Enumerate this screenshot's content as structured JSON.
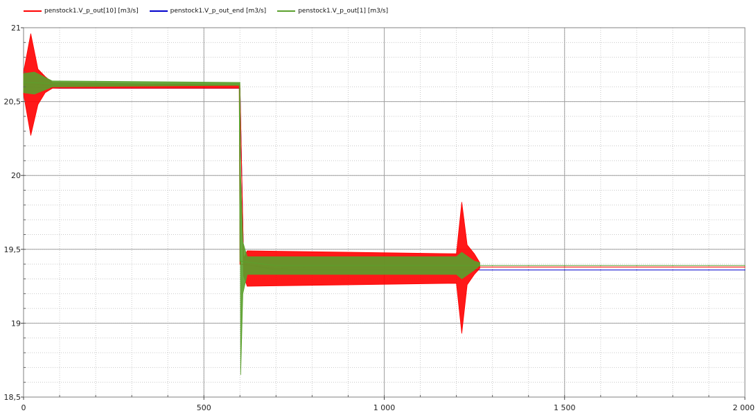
{
  "chart_data": {
    "type": "line",
    "title": "",
    "xlabel": "",
    "ylabel": "",
    "xlim": [
      0,
      2000
    ],
    "ylim": [
      18.5,
      21
    ],
    "grid": true,
    "legend_position": "top-left",
    "x_ticks": [
      {
        "value": 0,
        "label": "0"
      },
      {
        "value": 500,
        "label": "500"
      },
      {
        "value": 1000,
        "label": "1 000"
      },
      {
        "value": 1500,
        "label": "1 500"
      },
      {
        "value": 2000,
        "label": "2 000"
      }
    ],
    "y_ticks": [
      {
        "value": 18.5,
        "label": "18,5"
      },
      {
        "value": 19,
        "label": "19"
      },
      {
        "value": 19.5,
        "label": "19,5"
      },
      {
        "value": 20,
        "label": "20"
      },
      {
        "value": 20.5,
        "label": "20,5"
      },
      {
        "value": 21,
        "label": "21"
      }
    ],
    "series": [
      {
        "name": "penstock1.V_p_out[10] [m3/s]",
        "color": "#ff0000",
        "band": [
          {
            "x": 0,
            "lo": 20.55,
            "hi": 20.7
          },
          {
            "x": 20,
            "lo": 20.27,
            "hi": 20.96
          },
          {
            "x": 40,
            "lo": 20.48,
            "hi": 20.72
          },
          {
            "x": 60,
            "lo": 20.56,
            "hi": 20.67
          },
          {
            "x": 80,
            "lo": 20.59,
            "hi": 20.63
          },
          {
            "x": 600,
            "lo": 20.59,
            "hi": 20.61
          },
          {
            "x": 610,
            "lo": 19.32,
            "hi": 19.44
          },
          {
            "x": 620,
            "lo": 19.25,
            "hi": 19.49
          },
          {
            "x": 1200,
            "lo": 19.27,
            "hi": 19.47
          },
          {
            "x": 1215,
            "lo": 18.93,
            "hi": 19.82
          },
          {
            "x": 1230,
            "lo": 19.26,
            "hi": 19.53
          },
          {
            "x": 1250,
            "lo": 19.33,
            "hi": 19.47
          },
          {
            "x": 1265,
            "lo": 19.37,
            "hi": 19.41
          }
        ],
        "points": [
          {
            "x": 0,
            "y": 20.62
          },
          {
            "x": 100,
            "y": 20.61
          },
          {
            "x": 200,
            "y": 20.61
          },
          {
            "x": 300,
            "y": 20.61
          },
          {
            "x": 400,
            "y": 20.61
          },
          {
            "x": 500,
            "y": 20.61
          },
          {
            "x": 598,
            "y": 20.61
          },
          {
            "x": 600,
            "y": 19.4
          },
          {
            "x": 700,
            "y": 19.37
          },
          {
            "x": 800,
            "y": 19.38
          },
          {
            "x": 900,
            "y": 19.38
          },
          {
            "x": 1000,
            "y": 19.38
          },
          {
            "x": 1100,
            "y": 19.38
          },
          {
            "x": 1200,
            "y": 19.38
          },
          {
            "x": 1300,
            "y": 19.38
          },
          {
            "x": 1400,
            "y": 19.38
          },
          {
            "x": 1500,
            "y": 19.38
          },
          {
            "x": 1600,
            "y": 19.38
          },
          {
            "x": 1700,
            "y": 19.38
          },
          {
            "x": 1800,
            "y": 19.38
          },
          {
            "x": 1900,
            "y": 19.38
          },
          {
            "x": 2000,
            "y": 19.38
          }
        ]
      },
      {
        "name": "penstock1.V_p_out_end [m3/s]",
        "color": "#0000cc",
        "points": [
          {
            "x": 0,
            "y": 20.6
          },
          {
            "x": 100,
            "y": 20.59
          },
          {
            "x": 200,
            "y": 20.59
          },
          {
            "x": 300,
            "y": 20.59
          },
          {
            "x": 400,
            "y": 20.59
          },
          {
            "x": 500,
            "y": 20.59
          },
          {
            "x": 598,
            "y": 20.59
          },
          {
            "x": 600,
            "y": 20.59
          },
          {
            "x": 605,
            "y": 20.0
          },
          {
            "x": 610,
            "y": 19.4
          },
          {
            "x": 700,
            "y": 19.36
          },
          {
            "x": 800,
            "y": 19.36
          },
          {
            "x": 900,
            "y": 19.36
          },
          {
            "x": 1000,
            "y": 19.36
          },
          {
            "x": 1100,
            "y": 19.36
          },
          {
            "x": 1200,
            "y": 19.36
          },
          {
            "x": 1300,
            "y": 19.36
          },
          {
            "x": 1400,
            "y": 19.36
          },
          {
            "x": 1500,
            "y": 19.36
          },
          {
            "x": 1600,
            "y": 19.36
          },
          {
            "x": 1700,
            "y": 19.36
          },
          {
            "x": 1800,
            "y": 19.36
          },
          {
            "x": 1900,
            "y": 19.36
          },
          {
            "x": 2000,
            "y": 19.36
          }
        ]
      },
      {
        "name": "penstock1.V_p_out[1] [m3/s]",
        "color": "#5aa02c",
        "band": [
          {
            "x": 0,
            "lo": 20.56,
            "hi": 20.69
          },
          {
            "x": 30,
            "lo": 20.55,
            "hi": 20.7
          },
          {
            "x": 80,
            "lo": 20.6,
            "hi": 20.64
          },
          {
            "x": 600,
            "lo": 20.61,
            "hi": 20.63
          },
          {
            "x": 602,
            "lo": 18.65,
            "hi": 20.0
          },
          {
            "x": 608,
            "lo": 19.2,
            "hi": 19.55
          },
          {
            "x": 620,
            "lo": 19.33,
            "hi": 19.45
          },
          {
            "x": 1200,
            "lo": 19.33,
            "hi": 19.45
          },
          {
            "x": 1215,
            "lo": 19.3,
            "hi": 19.48
          },
          {
            "x": 1250,
            "lo": 19.36,
            "hi": 19.42
          },
          {
            "x": 1265,
            "lo": 19.39,
            "hi": 19.41
          }
        ],
        "points": [
          {
            "x": 0,
            "y": 20.63
          },
          {
            "x": 100,
            "y": 20.62
          },
          {
            "x": 200,
            "y": 20.62
          },
          {
            "x": 300,
            "y": 20.62
          },
          {
            "x": 400,
            "y": 20.62
          },
          {
            "x": 500,
            "y": 20.62
          },
          {
            "x": 598,
            "y": 20.62
          },
          {
            "x": 600,
            "y": 19.42
          },
          {
            "x": 700,
            "y": 19.39
          },
          {
            "x": 800,
            "y": 19.39
          },
          {
            "x": 900,
            "y": 19.39
          },
          {
            "x": 1000,
            "y": 19.39
          },
          {
            "x": 1100,
            "y": 19.39
          },
          {
            "x": 1200,
            "y": 19.39
          },
          {
            "x": 1300,
            "y": 19.39
          },
          {
            "x": 1400,
            "y": 19.39
          },
          {
            "x": 1500,
            "y": 19.39
          },
          {
            "x": 1600,
            "y": 19.39
          },
          {
            "x": 1700,
            "y": 19.39
          },
          {
            "x": 1800,
            "y": 19.39
          },
          {
            "x": 1900,
            "y": 19.39
          },
          {
            "x": 2000,
            "y": 19.39
          }
        ]
      }
    ]
  }
}
